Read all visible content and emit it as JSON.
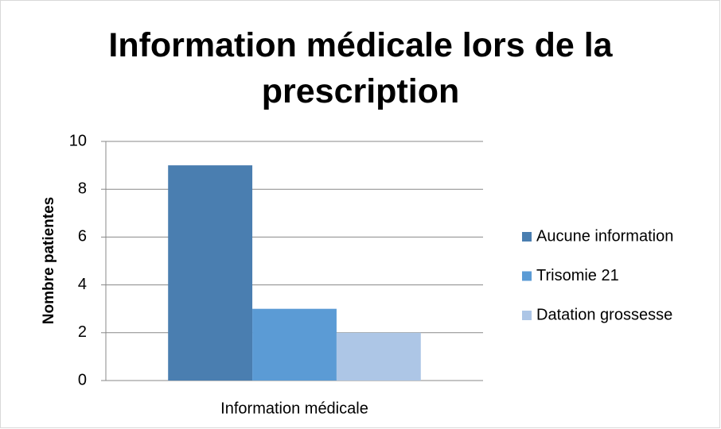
{
  "chart_data": {
    "type": "bar",
    "title": "Information médicale lors de la prescription",
    "y_label": "Nombre patientes",
    "categories": [
      "Information médicale"
    ],
    "series": [
      {
        "name": "Aucune information",
        "color": "#4a7eb0",
        "values": [
          9
        ]
      },
      {
        "name": "Trisomie 21",
        "color": "#5b9bd5",
        "values": [
          3
        ]
      },
      {
        "name": "Datation grossesse",
        "color": "#adc6e6",
        "values": [
          2
        ]
      }
    ],
    "ylim": [
      0,
      10
    ],
    "yticks": [
      0,
      2,
      4,
      6,
      8,
      10
    ],
    "grid": true,
    "legend": "right"
  }
}
